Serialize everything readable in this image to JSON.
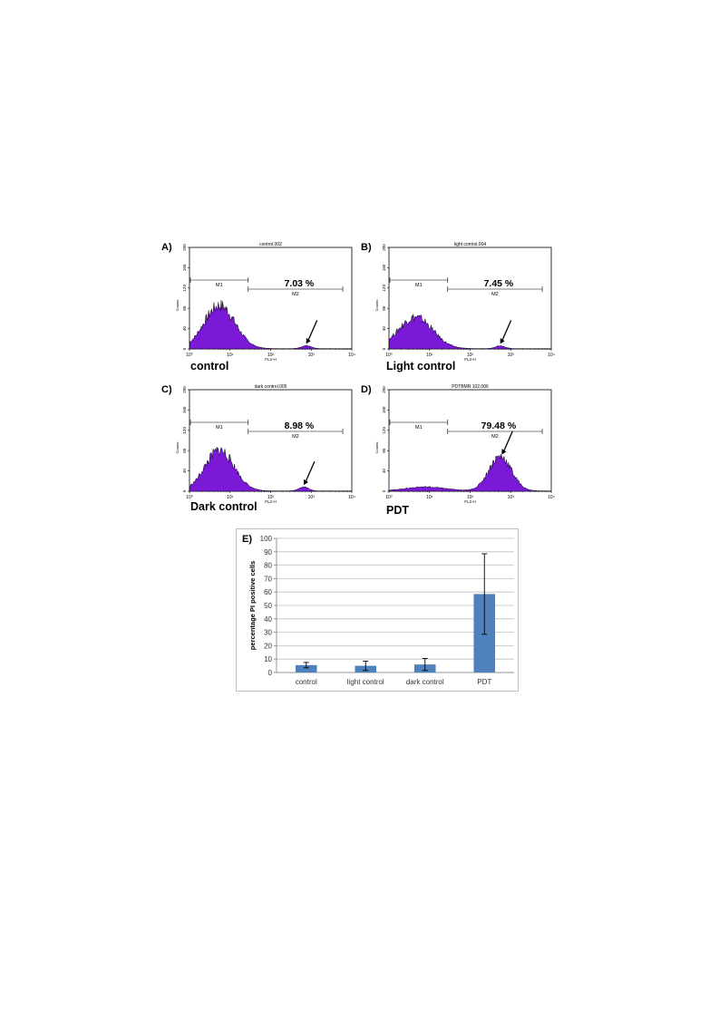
{
  "chart_data": [
    {
      "type": "area",
      "letter": "A)",
      "title": "control.002",
      "caption": "control",
      "xlabel": "FL2-H",
      "ylabel": "Counts",
      "x_scale": "log",
      "xlim": [
        1,
        10000
      ],
      "ylim": [
        0,
        200
      ],
      "xticks": [
        "10⁰",
        "10¹",
        "10²",
        "10³",
        "10⁴"
      ],
      "yticks": [
        "0",
        "40",
        "80",
        "120",
        "160",
        "200"
      ],
      "gates": [
        {
          "name": "M1",
          "range": [
            1,
            28
          ]
        },
        {
          "name": "M2",
          "range": [
            28,
            6000
          ]
        }
      ],
      "m2_percent": "7.03 %",
      "peaks": [
        {
          "center_x": 5.5,
          "height": 85,
          "width_decades": 0.38
        },
        {
          "center_x": 750,
          "height": 6,
          "width_decades": 0.12
        }
      ],
      "arrow_target_x": 750
    },
    {
      "type": "area",
      "letter": "B)",
      "title": "light control.004",
      "caption": "Light control",
      "xlabel": "FL2-H",
      "ylabel": "Counts",
      "x_scale": "log",
      "xlim": [
        1,
        10000
      ],
      "ylim": [
        0,
        200
      ],
      "xticks": [
        "10⁰",
        "10¹",
        "10²",
        "10³",
        "10⁴"
      ],
      "yticks": [
        "0",
        "40",
        "80",
        "120",
        "160",
        "200"
      ],
      "gates": [
        {
          "name": "M1",
          "range": [
            1,
            28
          ]
        },
        {
          "name": "M2",
          "range": [
            28,
            6000
          ]
        }
      ],
      "m2_percent": "7.45 %",
      "peaks": [
        {
          "center_x": 4.5,
          "height": 62,
          "width_decades": 0.42
        },
        {
          "center_x": 550,
          "height": 6,
          "width_decades": 0.12
        }
      ],
      "arrow_target_x": 550
    },
    {
      "type": "area",
      "letter": "C)",
      "title": "dark control.005",
      "caption": "Dark control",
      "xlabel": "FL2-H",
      "ylabel": "Counts",
      "x_scale": "log",
      "xlim": [
        1,
        10000
      ],
      "ylim": [
        0,
        200
      ],
      "xticks": [
        "10⁰",
        "10¹",
        "10²",
        "10³",
        "10⁴"
      ],
      "yticks": [
        "0",
        "40",
        "80",
        "120",
        "160",
        "200"
      ],
      "gates": [
        {
          "name": "M1",
          "range": [
            1,
            28
          ]
        },
        {
          "name": "M2",
          "range": [
            28,
            6000
          ]
        }
      ],
      "m2_percent": "8.98 %",
      "peaks": [
        {
          "center_x": 5.5,
          "height": 80,
          "width_decades": 0.36
        },
        {
          "center_x": 650,
          "height": 8,
          "width_decades": 0.12
        }
      ],
      "arrow_target_x": 650
    },
    {
      "type": "area",
      "letter": "D)",
      "title": "PDTBMR 102.006",
      "caption": "PDT",
      "xlabel": "FL2-H",
      "ylabel": "Counts",
      "x_scale": "log",
      "xlim": [
        1,
        10000
      ],
      "ylim": [
        0,
        200
      ],
      "xticks": [
        "10⁰",
        "10¹",
        "10²",
        "10³",
        "10⁴"
      ],
      "yticks": [
        "0",
        "40",
        "80",
        "120",
        "160",
        "200"
      ],
      "gates": [
        {
          "name": "M1",
          "range": [
            1,
            28
          ]
        },
        {
          "name": "M2",
          "range": [
            28,
            6000
          ]
        }
      ],
      "m2_percent": "79.48 %",
      "peaks": [
        {
          "center_x": 8,
          "height": 8,
          "width_decades": 0.5
        },
        {
          "center_x": 550,
          "height": 68,
          "width_decades": 0.28
        }
      ],
      "arrow_target_x": 600
    },
    {
      "type": "bar",
      "letter": "E)",
      "categories": [
        "control",
        "light control",
        "dark control",
        "PDT"
      ],
      "values": [
        5.5,
        5,
        6,
        58.5
      ],
      "error": [
        2,
        3.5,
        4.5,
        30
      ],
      "ylabel": "percentage PI positive cells",
      "ylim": [
        0,
        100
      ],
      "yticks": [
        0,
        10,
        20,
        30,
        40,
        50,
        60,
        70,
        80,
        90,
        100
      ],
      "grid": true,
      "bar_color": "#4f81bd"
    }
  ],
  "colors": {
    "histogram_fill": "#7a1ad6",
    "histogram_outline": "#000000"
  }
}
